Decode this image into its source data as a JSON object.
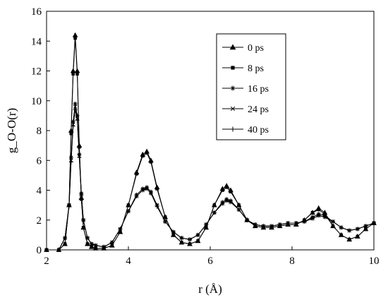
{
  "chart_data": {
    "type": "line",
    "title": "",
    "xlabel": "r (Å)",
    "ylabel": "g_O-O(r)",
    "xlim": [
      2,
      10
    ],
    "ylim": [
      0,
      16
    ],
    "x_ticks": [
      "2",
      "4",
      "6",
      "8",
      "10"
    ],
    "y_ticks": [
      "0",
      "2",
      "4",
      "6",
      "8",
      "10",
      "12",
      "14",
      "16"
    ],
    "grid": false,
    "legend_position": "top-right",
    "series": [
      {
        "name": "0 ps",
        "marker": "triangle",
        "x": [
          2.0,
          2.3,
          2.45,
          2.55,
          2.6,
          2.65,
          2.7,
          2.75,
          2.8,
          2.85,
          2.9,
          3.0,
          3.1,
          3.2,
          3.4,
          3.6,
          3.8,
          4.0,
          4.2,
          4.35,
          4.45,
          4.55,
          4.7,
          4.9,
          5.1,
          5.3,
          5.5,
          5.7,
          5.9,
          6.1,
          6.3,
          6.4,
          6.5,
          6.7,
          6.9,
          7.1,
          7.3,
          7.5,
          7.7,
          7.9,
          8.1,
          8.3,
          8.5,
          8.65,
          8.8,
          9.0,
          9.2,
          9.4,
          9.6,
          9.8,
          10.0
        ],
        "y": [
          0.0,
          0.0,
          0.4,
          3.0,
          8.0,
          12.0,
          14.4,
          12.0,
          7.0,
          3.5,
          1.5,
          0.4,
          0.2,
          0.1,
          0.1,
          0.3,
          1.2,
          3.0,
          5.2,
          6.4,
          6.6,
          6.0,
          4.2,
          2.2,
          1.0,
          0.5,
          0.4,
          0.6,
          1.5,
          3.0,
          4.1,
          4.3,
          4.0,
          3.0,
          2.0,
          1.6,
          1.5,
          1.5,
          1.6,
          1.7,
          1.7,
          2.0,
          2.5,
          2.8,
          2.5,
          1.6,
          1.0,
          0.7,
          0.9,
          1.4,
          1.8
        ]
      },
      {
        "name": "8 ps",
        "marker": "square",
        "x": [
          2.0,
          2.3,
          2.45,
          2.55,
          2.6,
          2.65,
          2.7,
          2.75,
          2.8,
          2.85,
          2.9,
          3.0,
          3.1,
          3.2,
          3.4,
          3.6,
          3.8,
          4.0,
          4.2,
          4.35,
          4.45,
          4.55,
          4.7,
          4.9,
          5.1,
          5.3,
          5.5,
          5.7,
          5.9,
          6.1,
          6.3,
          6.4,
          6.5,
          6.7,
          6.9,
          7.1,
          7.3,
          7.5,
          7.7,
          7.9,
          8.1,
          8.3,
          8.5,
          8.65,
          8.8,
          9.0,
          9.2,
          9.4,
          9.6,
          9.8,
          10.0
        ],
        "y": [
          0.0,
          0.0,
          0.4,
          3.0,
          7.8,
          11.8,
          14.2,
          11.8,
          6.9,
          3.4,
          1.5,
          0.4,
          0.2,
          0.1,
          0.1,
          0.3,
          1.2,
          3.0,
          5.1,
          6.3,
          6.5,
          5.9,
          4.1,
          2.2,
          1.0,
          0.5,
          0.4,
          0.6,
          1.5,
          3.0,
          4.0,
          4.2,
          3.9,
          3.0,
          2.0,
          1.6,
          1.5,
          1.5,
          1.6,
          1.7,
          1.7,
          2.0,
          2.5,
          2.7,
          2.4,
          1.6,
          1.0,
          0.7,
          0.9,
          1.4,
          1.8
        ]
      },
      {
        "name": "16 ps",
        "marker": "asterisk",
        "x": [
          2.0,
          2.3,
          2.45,
          2.55,
          2.6,
          2.65,
          2.7,
          2.75,
          2.8,
          2.85,
          2.9,
          3.0,
          3.1,
          3.2,
          3.4,
          3.6,
          3.8,
          4.0,
          4.2,
          4.35,
          4.45,
          4.55,
          4.7,
          4.9,
          5.1,
          5.3,
          5.5,
          5.7,
          5.9,
          6.1,
          6.3,
          6.4,
          6.5,
          6.7,
          6.9,
          7.1,
          7.3,
          7.5,
          7.7,
          7.9,
          8.1,
          8.3,
          8.5,
          8.65,
          8.8,
          9.0,
          9.2,
          9.4,
          9.6,
          9.8,
          10.0
        ],
        "y": [
          0.0,
          0.0,
          0.8,
          3.0,
          6.2,
          8.6,
          9.8,
          9.0,
          6.4,
          3.8,
          2.0,
          0.8,
          0.4,
          0.3,
          0.2,
          0.5,
          1.4,
          2.6,
          3.7,
          4.1,
          4.2,
          3.9,
          3.0,
          1.9,
          1.2,
          0.8,
          0.7,
          1.0,
          1.7,
          2.5,
          3.2,
          3.4,
          3.3,
          2.7,
          2.0,
          1.7,
          1.6,
          1.6,
          1.7,
          1.8,
          1.8,
          1.9,
          2.2,
          2.4,
          2.3,
          1.9,
          1.5,
          1.3,
          1.4,
          1.6,
          1.8
        ]
      },
      {
        "name": "24 ps",
        "marker": "x",
        "x": [
          2.0,
          2.3,
          2.45,
          2.55,
          2.6,
          2.65,
          2.7,
          2.75,
          2.8,
          2.85,
          2.9,
          3.0,
          3.1,
          3.2,
          3.4,
          3.6,
          3.8,
          4.0,
          4.2,
          4.35,
          4.45,
          4.55,
          4.7,
          4.9,
          5.1,
          5.3,
          5.5,
          5.7,
          5.9,
          6.1,
          6.3,
          6.4,
          6.5,
          6.7,
          6.9,
          7.1,
          7.3,
          7.5,
          7.7,
          7.9,
          8.1,
          8.3,
          8.5,
          8.65,
          8.8,
          9.0,
          9.2,
          9.4,
          9.6,
          9.8,
          10.0
        ],
        "y": [
          0.0,
          0.0,
          0.8,
          3.0,
          6.0,
          8.4,
          9.6,
          8.8,
          6.3,
          3.7,
          2.0,
          0.8,
          0.4,
          0.3,
          0.2,
          0.5,
          1.4,
          2.6,
          3.6,
          4.0,
          4.1,
          3.8,
          3.0,
          1.9,
          1.2,
          0.8,
          0.7,
          1.0,
          1.7,
          2.5,
          3.1,
          3.3,
          3.2,
          2.7,
          2.0,
          1.7,
          1.6,
          1.6,
          1.7,
          1.8,
          1.8,
          1.9,
          2.1,
          2.3,
          2.2,
          1.9,
          1.5,
          1.3,
          1.4,
          1.6,
          1.8
        ]
      },
      {
        "name": "40 ps",
        "marker": "plus",
        "x": [
          2.0,
          2.3,
          2.45,
          2.55,
          2.6,
          2.65,
          2.7,
          2.75,
          2.8,
          2.85,
          2.9,
          3.0,
          3.1,
          3.2,
          3.4,
          3.6,
          3.8,
          4.0,
          4.2,
          4.35,
          4.45,
          4.55,
          4.7,
          4.9,
          5.1,
          5.3,
          5.5,
          5.7,
          5.9,
          6.1,
          6.3,
          6.4,
          6.5,
          6.7,
          6.9,
          7.1,
          7.3,
          7.5,
          7.7,
          7.9,
          8.1,
          8.3,
          8.5,
          8.65,
          8.8,
          9.0,
          9.2,
          9.4,
          9.6,
          9.8,
          10.0
        ],
        "y": [
          0.0,
          0.0,
          0.8,
          2.9,
          5.9,
          8.3,
          9.4,
          8.7,
          6.2,
          3.7,
          2.0,
          0.8,
          0.4,
          0.3,
          0.2,
          0.5,
          1.4,
          2.6,
          3.6,
          4.0,
          4.1,
          3.8,
          2.9,
          1.9,
          1.2,
          0.8,
          0.7,
          1.0,
          1.7,
          2.5,
          3.1,
          3.3,
          3.2,
          2.7,
          2.0,
          1.7,
          1.6,
          1.6,
          1.7,
          1.8,
          1.8,
          1.9,
          2.1,
          2.3,
          2.2,
          1.9,
          1.5,
          1.3,
          1.4,
          1.6,
          1.8
        ]
      }
    ]
  }
}
